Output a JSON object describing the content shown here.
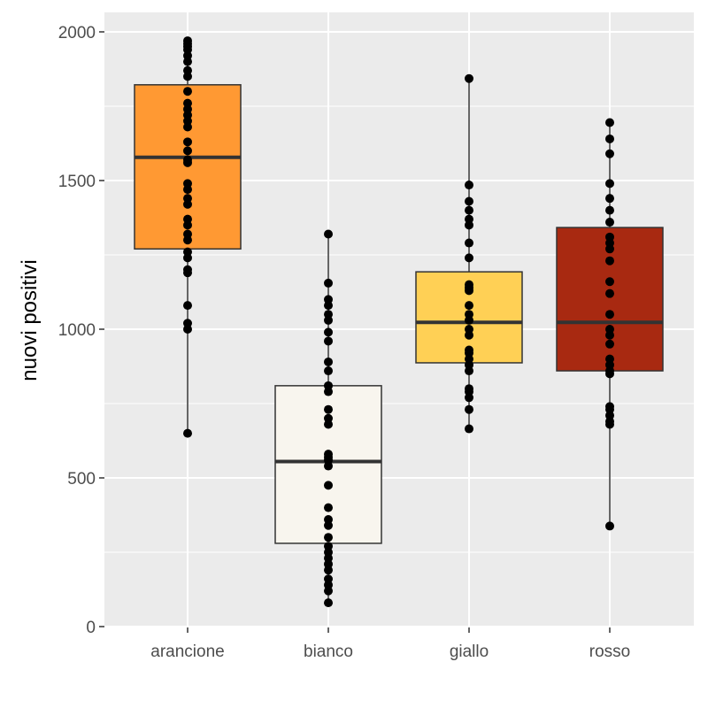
{
  "chart_data": {
    "type": "box",
    "title": "",
    "xlabel": "",
    "ylabel": "nuovi positivi",
    "ylim": [
      0,
      2000
    ],
    "yticks": [
      0,
      500,
      1000,
      1500,
      2000
    ],
    "grid": true,
    "legend": "none",
    "categories": [
      "arancione",
      "bianco",
      "giallo",
      "rosso"
    ],
    "boxes": [
      {
        "category": "arancione",
        "color": "#FF9933",
        "whisker_low": 650,
        "q1": 1270,
        "median": 1578,
        "q3": 1822,
        "whisker_high": 1970,
        "points": [
          1970,
          1960,
          1950,
          1940,
          1920,
          1900,
          1870,
          1850,
          1800,
          1760,
          1740,
          1720,
          1700,
          1680,
          1630,
          1600,
          1570,
          1560,
          1490,
          1470,
          1440,
          1420,
          1370,
          1350,
          1320,
          1300,
          1260,
          1240,
          1200,
          1190,
          1080,
          1020,
          1000,
          650
        ]
      },
      {
        "category": "bianco",
        "color": "#F8F5EE",
        "whisker_low": 80,
        "q1": 280,
        "median": 555,
        "q3": 810,
        "whisker_high": 1320,
        "points": [
          1320,
          1155,
          1100,
          1080,
          1050,
          1030,
          990,
          960,
          890,
          860,
          810,
          790,
          730,
          700,
          680,
          580,
          570,
          560,
          540,
          475,
          400,
          360,
          340,
          300,
          270,
          250,
          230,
          210,
          190,
          160,
          140,
          120,
          80
        ]
      },
      {
        "category": "giallo",
        "color": "#FFD055",
        "whisker_low": 665,
        "q1": 887,
        "median": 1023,
        "q3": 1193,
        "whisker_high": 1843,
        "points": [
          1843,
          1485,
          1430,
          1400,
          1370,
          1350,
          1290,
          1240,
          1150,
          1140,
          1130,
          1080,
          1050,
          1030,
          1000,
          980,
          930,
          920,
          900,
          880,
          860,
          800,
          790,
          770,
          730,
          665
        ]
      },
      {
        "category": "rosso",
        "color": "#A82911",
        "whisker_low": 338,
        "q1": 860,
        "median": 1023,
        "q3": 1342,
        "whisker_high": 1695,
        "points": [
          1695,
          1640,
          1590,
          1490,
          1440,
          1400,
          1360,
          1310,
          1290,
          1270,
          1230,
          1160,
          1120,
          1050,
          1000,
          980,
          950,
          900,
          880,
          860,
          850,
          740,
          730,
          710,
          690,
          680,
          338
        ]
      }
    ]
  }
}
